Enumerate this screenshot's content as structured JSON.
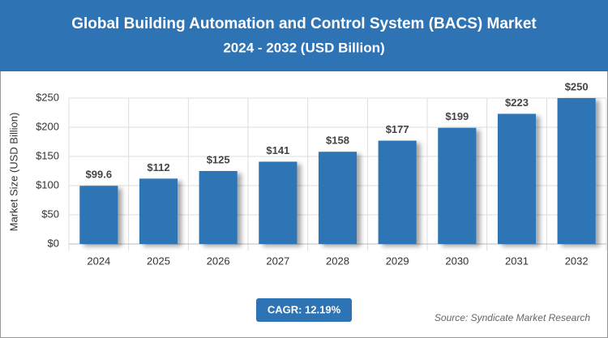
{
  "chart_data": {
    "type": "bar",
    "title": "Global Building Automation and Control System (BACS) Market",
    "subtitle": "2024 - 2032 (USD Billion)",
    "y_label": "Market Size (USD Billion)",
    "categories": [
      "2024",
      "2025",
      "2026",
      "2027",
      "2028",
      "2029",
      "2030",
      "2031",
      "2032"
    ],
    "values": [
      99.6,
      112,
      125,
      141,
      158,
      177,
      199,
      223,
      250
    ],
    "value_labels": [
      "$99.6",
      "$112",
      "$125",
      "$141",
      "$158",
      "$177",
      "$199",
      "$223",
      "$250"
    ],
    "color": "#2e74b5",
    "ylim": [
      0,
      250
    ],
    "yticks": [
      {
        "value": 0,
        "label": "$0"
      },
      {
        "value": 50,
        "label": "$50"
      },
      {
        "value": 100,
        "label": "$100"
      },
      {
        "value": 150,
        "label": "$150"
      },
      {
        "value": 200,
        "label": "$200"
      },
      {
        "value": 250,
        "label": "$250"
      }
    ],
    "grid": true,
    "annotation": "CAGR: 12.19%",
    "source": "Source: Syndicate Market Research"
  }
}
